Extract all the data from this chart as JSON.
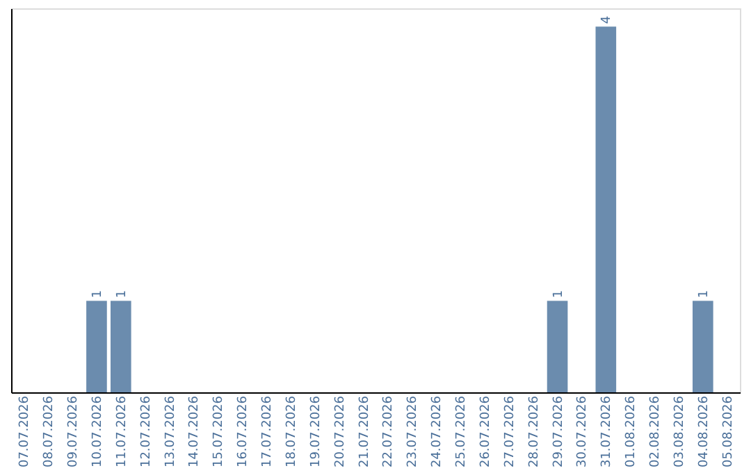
{
  "chart_data": {
    "type": "bar",
    "categories": [
      "07.07.2026",
      "08.07.2026",
      "09.07.2026",
      "10.07.2026",
      "11.07.2026",
      "12.07.2026",
      "13.07.2026",
      "14.07.2026",
      "15.07.2026",
      "16.07.2026",
      "17.07.2026",
      "18.07.2026",
      "19.07.2026",
      "20.07.2026",
      "21.07.2026",
      "22.07.2026",
      "23.07.2026",
      "24.07.2026",
      "25.07.2026",
      "26.07.2026",
      "27.07.2026",
      "28.07.2026",
      "29.07.2026",
      "30.07.2026",
      "31.07.2026",
      "01.08.2026",
      "02.08.2026",
      "03.08.2026",
      "04.08.2026",
      "05.08.2026"
    ],
    "values": [
      0,
      0,
      0,
      1,
      1,
      0,
      0,
      0,
      0,
      0,
      0,
      0,
      0,
      0,
      0,
      0,
      0,
      0,
      0,
      0,
      0,
      0,
      1,
      0,
      4,
      0,
      0,
      0,
      1,
      0
    ],
    "value_labels": [
      null,
      null,
      null,
      "1",
      "1",
      null,
      null,
      null,
      null,
      null,
      null,
      null,
      null,
      null,
      null,
      null,
      null,
      null,
      null,
      null,
      null,
      null,
      "1",
      null,
      "4",
      null,
      null,
      null,
      "1",
      null
    ],
    "color": "#6b8cae",
    "ylim": [
      0,
      4.2
    ],
    "tick_labels": "x",
    "grid": false
  }
}
